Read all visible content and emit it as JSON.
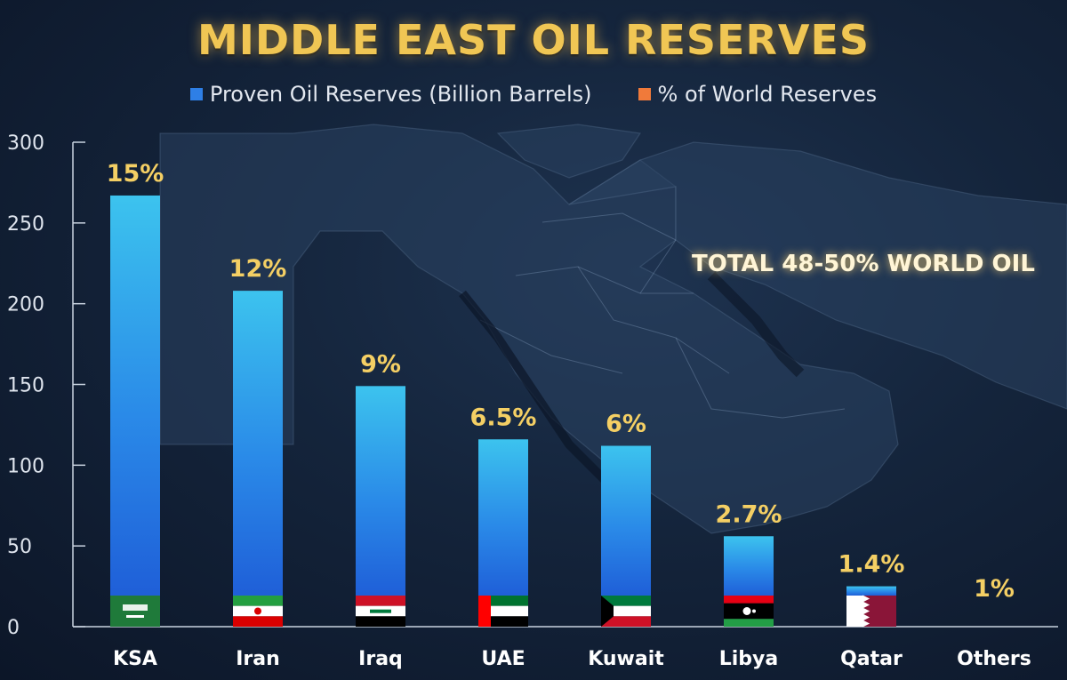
{
  "chart_data": {
    "type": "bar",
    "title": "MIDDLE EAST OIL RESERVES",
    "legend": [
      {
        "label": "Proven Oil Reserves (Billion Barrels)",
        "color": "#2e7fe6"
      },
      {
        "label": "% of World Reserves",
        "color": "#f07a3a"
      }
    ],
    "categories": [
      "KSA",
      "Iran",
      "Iraq",
      "UAE",
      "Kuwait",
      "Libya",
      "Qatar",
      "Others"
    ],
    "series": [
      {
        "name": "Proven Oil Reserves (Billion Barrels)",
        "values": [
          267,
          208,
          149,
          116,
          112,
          56,
          25,
          0
        ]
      },
      {
        "name": "% of World Reserves",
        "values": [
          15,
          12,
          9,
          6.5,
          6,
          2.7,
          1.4,
          1
        ]
      }
    ],
    "data_labels": [
      "15%",
      "12%",
      "9%",
      "6.5%",
      "6%",
      "2.7%",
      "1.4%",
      "1%"
    ],
    "flags": [
      "ksa-flag",
      "iran-flag",
      "iraq-flag",
      "uae-flag",
      "kuwait-flag",
      "libya-flag",
      "qatar-flag",
      ""
    ],
    "annotation": "TOTAL 48-50% WORLD OIL",
    "yticks": [
      0,
      50,
      100,
      150,
      200,
      250,
      300
    ],
    "ylim": [
      0,
      300
    ],
    "xlabel": "",
    "ylabel": "",
    "grid": false,
    "legend_position": "top-center"
  }
}
